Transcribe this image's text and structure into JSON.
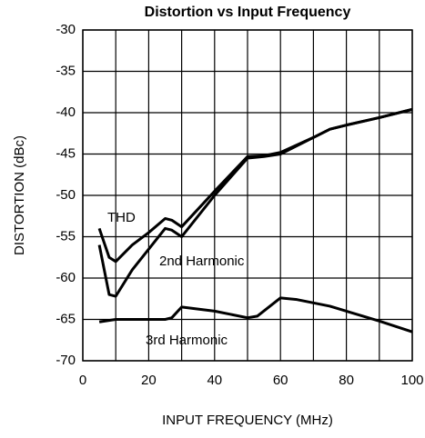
{
  "chart_data": {
    "type": "line",
    "title": "Distortion vs Input Frequency",
    "xlabel": "INPUT FREQUENCY (MHz)",
    "ylabel": "DISTORTION (dBc)",
    "xlim": [
      0,
      100
    ],
    "xticks": [
      0,
      20,
      40,
      60,
      80,
      100
    ],
    "ylim": [
      -70,
      -30
    ],
    "yticks": [
      -30,
      -35,
      -40,
      -45,
      -50,
      -55,
      -60,
      -65,
      -70
    ],
    "grid": true,
    "series": [
      {
        "name": "THD",
        "color": "#000000",
        "x": [
          5,
          8,
          10,
          15,
          20,
          25,
          27,
          30,
          40,
          50,
          55,
          60,
          70,
          75,
          80,
          90,
          100
        ],
        "values": [
          -54,
          -57.5,
          -58,
          -56,
          -54.5,
          -52.8,
          -53,
          -53.8,
          -49.5,
          -45.3,
          -45.2,
          -44.8,
          -43,
          -42,
          -41.5,
          -40.6,
          -39.6
        ]
      },
      {
        "name": "2nd Harmonic",
        "color": "#000000",
        "x": [
          5,
          8,
          10,
          15,
          20,
          25,
          27,
          30,
          40,
          50,
          55,
          60,
          70,
          75,
          80,
          90,
          100
        ],
        "values": [
          -56,
          -62,
          -62.2,
          -59,
          -56.5,
          -54,
          -54.2,
          -55,
          -50,
          -45.5,
          -45.3,
          -45,
          -43,
          -42,
          -41.5,
          -40.6,
          -39.6
        ]
      },
      {
        "name": "3rd Harmonic",
        "color": "#000000",
        "x": [
          5,
          10,
          20,
          25,
          27,
          30,
          40,
          50,
          53,
          60,
          65,
          75,
          90,
          100
        ],
        "values": [
          -65.3,
          -65,
          -65,
          -65,
          -64.8,
          -63.5,
          -64,
          -64.8,
          -64.6,
          -62.4,
          -62.6,
          -63.4,
          -65.2,
          -66.5
        ]
      }
    ]
  }
}
